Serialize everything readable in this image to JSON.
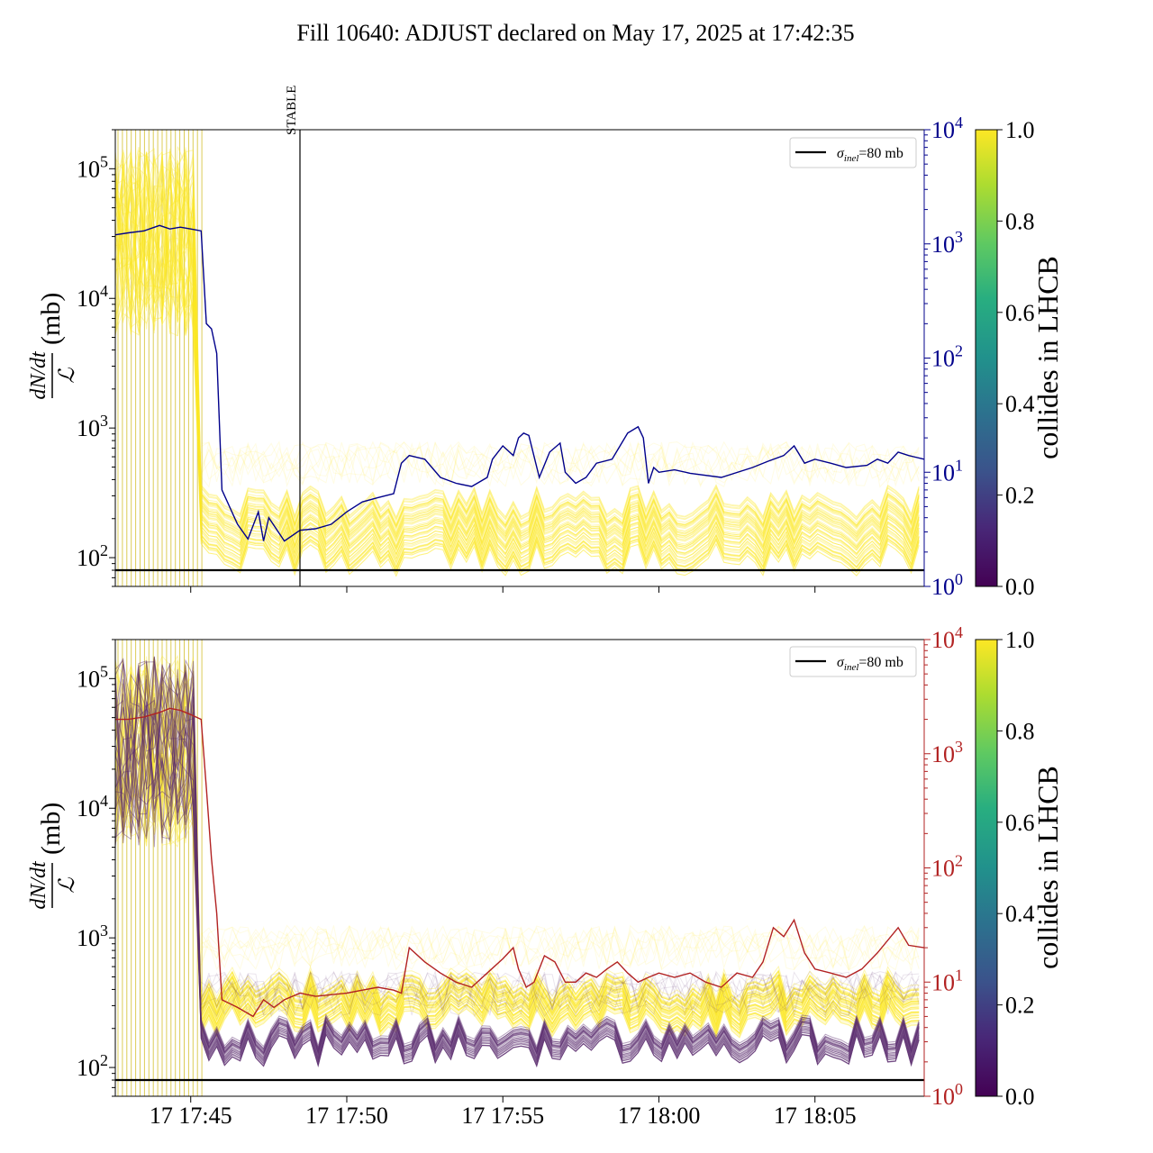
{
  "title": "Fill 10640: ADJUST declared on May 17, 2025 at 17:42:35",
  "colors": {
    "right_axis_top": "#00008b",
    "right_axis_bottom": "#b22222",
    "band_yellow": "#fde725",
    "band_purple": "#5a2d6e",
    "reference": "#000000"
  },
  "chart_data": [
    {
      "type": "line",
      "panel": "top",
      "ylabel_num": "dN/dt",
      "ylabel_den": "ℒ",
      "ylabel_unit": "(mb)",
      "y_scale": "log",
      "ylim": [
        60,
        200000
      ],
      "yticks": [
        100,
        1000,
        10000,
        100000
      ],
      "ytick_labels": [
        {
          "base": "10",
          "exp": "2"
        },
        {
          "base": "10",
          "exp": "3"
        },
        {
          "base": "10",
          "exp": "4"
        },
        {
          "base": "10",
          "exp": "5"
        }
      ],
      "x_range": [
        "17:42:35",
        "18:08:30"
      ],
      "right_axis": {
        "scale": "log",
        "ylim": [
          1,
          10000
        ],
        "color": "#00008b",
        "tick_labels": [
          {
            "base": "10",
            "exp": "0"
          },
          {
            "base": "10",
            "exp": "1"
          },
          {
            "base": "10",
            "exp": "2"
          },
          {
            "base": "10",
            "exp": "3"
          },
          {
            "base": "10",
            "exp": "4"
          }
        ]
      },
      "reference_line": {
        "y": 80,
        "label_sym": "σ",
        "label_sub": "inel",
        "label_rest": "=80 mb"
      },
      "vline": {
        "x": "17:48:30",
        "label": "STABLE"
      },
      "band": {
        "low_start": 5000,
        "high_start": 150000,
        "low_end": 95,
        "high_end": 270,
        "colored_by": "collides in LHCB",
        "value": 1.0
      },
      "right_series": {
        "x": [
          "17:42:35",
          "17:43:00",
          "17:43:30",
          "17:44:00",
          "17:44:20",
          "17:44:40",
          "17:45:00",
          "17:45:20",
          "17:45:30",
          "17:45:40",
          "17:45:50",
          "17:46:00",
          "17:46:30",
          "17:46:50",
          "17:47:10",
          "17:47:20",
          "17:47:30",
          "17:48:00",
          "17:48:30",
          "17:49:00",
          "17:49:30",
          "17:50:00",
          "17:50:30",
          "17:51:00",
          "17:51:30",
          "17:51:45",
          "17:52:00",
          "17:52:30",
          "17:53:00",
          "17:53:30",
          "17:54:00",
          "17:54:30",
          "17:54:40",
          "17:55:00",
          "17:55:20",
          "17:55:30",
          "17:55:40",
          "17:55:50",
          "17:56:10",
          "17:56:30",
          "17:56:50",
          "17:57:00",
          "17:57:20",
          "17:57:40",
          "17:58:00",
          "17:58:30",
          "17:59:00",
          "17:59:20",
          "17:59:30",
          "17:59:40",
          "17:59:50",
          "18:00:00",
          "18:00:30",
          "18:01:00",
          "18:02:00",
          "18:03:00",
          "18:03:30",
          "18:04:00",
          "18:04:20",
          "18:04:40",
          "18:05:00",
          "18:05:30",
          "18:06:00",
          "18:06:40",
          "18:07:00",
          "18:07:20",
          "18:07:40",
          "18:08:00",
          "18:08:30"
        ],
        "values": [
          1200,
          1250,
          1300,
          1450,
          1350,
          1400,
          1350,
          1300,
          200,
          180,
          110,
          7,
          3.5,
          2.6,
          4.5,
          2.5,
          4.0,
          2.5,
          3.1,
          3.2,
          3.5,
          4.5,
          5.5,
          6.0,
          6.5,
          12,
          14,
          13,
          9,
          8,
          7.5,
          9,
          13,
          17,
          14,
          20,
          22,
          21,
          9,
          15,
          18,
          10,
          8,
          9,
          12,
          13,
          22,
          25,
          20,
          8,
          11,
          10,
          10.5,
          9.8,
          9.0,
          11,
          12.5,
          14,
          17,
          12,
          13,
          12,
          11,
          11.5,
          13,
          12,
          15,
          14,
          13
        ]
      },
      "colorbar": {
        "label": "collides in LHCB",
        "ticks": [
          "0.0",
          "0.2",
          "0.4",
          "0.6",
          "0.8",
          "1.0"
        ]
      }
    },
    {
      "type": "line",
      "panel": "bottom",
      "ylabel_num": "dN/dt",
      "ylabel_den": "ℒ",
      "ylabel_unit": "(mb)",
      "y_scale": "log",
      "ylim": [
        60,
        200000
      ],
      "yticks": [
        100,
        1000,
        10000,
        100000
      ],
      "ytick_labels": [
        {
          "base": "10",
          "exp": "2"
        },
        {
          "base": "10",
          "exp": "3"
        },
        {
          "base": "10",
          "exp": "4"
        },
        {
          "base": "10",
          "exp": "5"
        }
      ],
      "x_range": [
        "17:42:35",
        "18:08:30"
      ],
      "xticks": [
        "17:45:00",
        "17:50:00",
        "17:55:00",
        "18:00:00",
        "18:05:00"
      ],
      "xtick_labels": [
        "17 17:45",
        "17 17:50",
        "17 17:55",
        "17 18:00",
        "17 18:05"
      ],
      "right_axis": {
        "scale": "log",
        "ylim": [
          1,
          10000
        ],
        "color": "#b22222",
        "tick_labels": [
          {
            "base": "10",
            "exp": "0"
          },
          {
            "base": "10",
            "exp": "1"
          },
          {
            "base": "10",
            "exp": "2"
          },
          {
            "base": "10",
            "exp": "3"
          },
          {
            "base": "10",
            "exp": "4"
          }
        ]
      },
      "reference_line": {
        "y": 80,
        "label_sym": "σ",
        "label_sub": "inel",
        "label_rest": "=80 mb"
      },
      "bands": [
        {
          "low_start": 5000,
          "high_start": 150000,
          "low_end": 230,
          "high_end": 430,
          "colored_by": "collides in LHCB",
          "value": 1.0
        },
        {
          "low_start": 5000,
          "high_start": 150000,
          "low_end": 135,
          "high_end": 190,
          "colored_by": "collides in LHCB",
          "value": 0.0
        }
      ],
      "right_series": {
        "x": [
          "17:42:35",
          "17:43:00",
          "17:43:30",
          "17:44:00",
          "17:44:20",
          "17:44:40",
          "17:45:00",
          "17:45:20",
          "17:45:30",
          "17:45:40",
          "17:45:50",
          "17:46:00",
          "17:46:30",
          "17:47:00",
          "17:47:20",
          "17:47:40",
          "17:48:00",
          "17:48:30",
          "17:49:00",
          "17:50:00",
          "17:50:30",
          "17:51:00",
          "17:51:30",
          "17:51:45",
          "17:52:00",
          "17:52:30",
          "17:53:00",
          "17:53:30",
          "17:54:00",
          "17:54:30",
          "17:55:00",
          "17:55:20",
          "17:55:30",
          "17:55:45",
          "17:56:00",
          "17:56:20",
          "17:56:40",
          "17:57:00",
          "17:57:20",
          "17:57:40",
          "17:58:00",
          "17:58:20",
          "17:58:40",
          "17:59:00",
          "17:59:20",
          "17:59:40",
          "18:00:00",
          "18:00:30",
          "18:01:00",
          "18:01:30",
          "18:02:00",
          "18:02:30",
          "18:03:00",
          "18:03:20",
          "18:03:40",
          "18:04:00",
          "18:04:20",
          "18:04:40",
          "18:05:00",
          "18:05:30",
          "18:06:00",
          "18:06:30",
          "18:07:00",
          "18:07:40",
          "18:08:00",
          "18:08:30"
        ],
        "values": [
          2000,
          2000,
          2100,
          2300,
          2500,
          2400,
          2200,
          2000,
          500,
          120,
          40,
          7,
          6,
          5,
          7,
          6,
          7,
          8,
          7.5,
          8,
          8.5,
          9,
          8.5,
          8,
          20,
          15,
          12,
          10,
          9,
          12,
          16,
          20,
          13,
          9,
          10,
          17,
          15,
          10,
          10,
          12,
          11,
          13,
          15,
          12,
          10,
          11,
          12,
          11,
          12,
          10,
          9,
          12,
          11,
          15,
          30,
          25,
          35,
          18,
          13,
          12,
          11,
          13,
          18,
          30,
          21,
          20
        ]
      },
      "colorbar": {
        "label": "collides in LHCB",
        "ticks": [
          "0.0",
          "0.2",
          "0.4",
          "0.6",
          "0.8",
          "1.0"
        ]
      }
    }
  ]
}
